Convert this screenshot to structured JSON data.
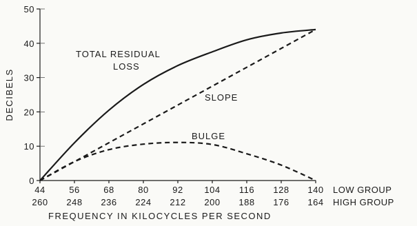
{
  "chart_data": {
    "type": "line",
    "ylabel": "DECIBELS",
    "xlabel": "FREQUENCY IN KILOCYCLES PER SECOND",
    "ylim": [
      0,
      50
    ],
    "y_ticks": [
      "0",
      "10",
      "20",
      "30",
      "40",
      "50"
    ],
    "x_ticks_low": [
      "44",
      "56",
      "68",
      "80",
      "92",
      "104",
      "116",
      "128",
      "140"
    ],
    "x_ticks_high": [
      "260",
      "248",
      "236",
      "224",
      "212",
      "200",
      "188",
      "176",
      "164"
    ],
    "x_row_labels": {
      "low": "LOW GROUP",
      "high": "HIGH GROUP"
    },
    "x": [
      44,
      56,
      68,
      80,
      92,
      104,
      116,
      128,
      140
    ],
    "grid": false,
    "series": [
      {
        "name": "TOTAL RESIDUAL LOSS",
        "style": "solid",
        "values": [
          0,
          11,
          20.5,
          28,
          33.5,
          37.5,
          41,
          43,
          44
        ]
      },
      {
        "name": "SLOPE",
        "style": "dashed",
        "values": [
          0,
          5.5,
          11,
          16.5,
          22,
          27.5,
          33,
          38.5,
          44
        ]
      },
      {
        "name": "BULGE",
        "style": "dashed",
        "values": [
          0,
          5.5,
          9,
          10.6,
          11.1,
          10.5,
          7.8,
          4.5,
          0
        ]
      }
    ],
    "annotations": [
      {
        "text_lines": [
          "TOTAL RESIDUAL",
          "LOSS"
        ],
        "series": "TOTAL RESIDUAL LOSS"
      },
      {
        "text_lines": [
          "SLOPE"
        ],
        "series": "SLOPE"
      },
      {
        "text_lines": [
          "BULGE"
        ],
        "series": "BULGE"
      }
    ]
  }
}
